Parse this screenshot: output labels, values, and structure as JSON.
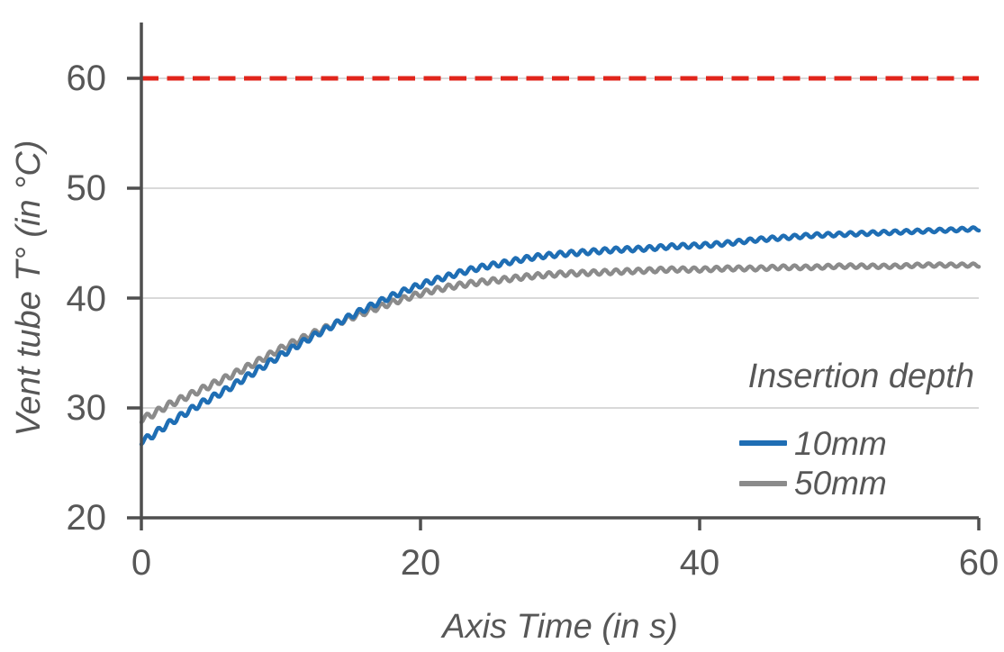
{
  "chart_data": {
    "type": "line",
    "title": "",
    "xlabel": "Axis Time (in s)",
    "ylabel": "Vent tube T° (in °C)",
    "xlim": [
      0,
      60
    ],
    "ylim": [
      20,
      65.08
    ],
    "xticks": [
      0,
      20,
      40,
      60
    ],
    "yticks": [
      60,
      50,
      40,
      30,
      20
    ],
    "grid": "horizontal-light-gray",
    "legend": {
      "title": "Insertion depth",
      "position": "inside-right",
      "entries": [
        "10mm",
        "50mm"
      ]
    },
    "threshold_line": {
      "value": 60,
      "color": "#e1251b",
      "style": "dashed"
    },
    "x_step_s": 2,
    "ripple": {
      "period_s": 0.8,
      "amplitude_start": 0.3,
      "amplitude_end": 0.15
    },
    "series": [
      {
        "name": "10mm",
        "color": "#1f6eb4",
        "values": [
          27.0,
          28.6,
          30.2,
          31.6,
          33.2,
          34.8,
          36.3,
          37.7,
          39.0,
          40.2,
          41.2,
          42.0,
          42.7,
          43.2,
          43.7,
          44.0,
          44.2,
          44.4,
          44.5,
          44.7,
          44.8,
          45.0,
          45.3,
          45.5,
          45.7,
          45.8,
          45.9,
          46.0,
          46.1,
          46.2,
          46.3
        ]
      },
      {
        "name": "50mm",
        "color": "#8b8b8b",
        "values": [
          29.0,
          30.3,
          31.5,
          32.7,
          34.0,
          35.4,
          36.6,
          37.7,
          38.7,
          39.6,
          40.4,
          41.0,
          41.4,
          41.7,
          42.0,
          42.2,
          42.3,
          42.4,
          42.5,
          42.6,
          42.6,
          42.7,
          42.7,
          42.8,
          42.8,
          42.9,
          42.9,
          42.9,
          43.0,
          43.0,
          43.0
        ]
      }
    ],
    "colors": {
      "axis": "#4f4f4f",
      "grid": "#d9d9d9",
      "text": "#575757",
      "background": "#ffffff"
    }
  }
}
